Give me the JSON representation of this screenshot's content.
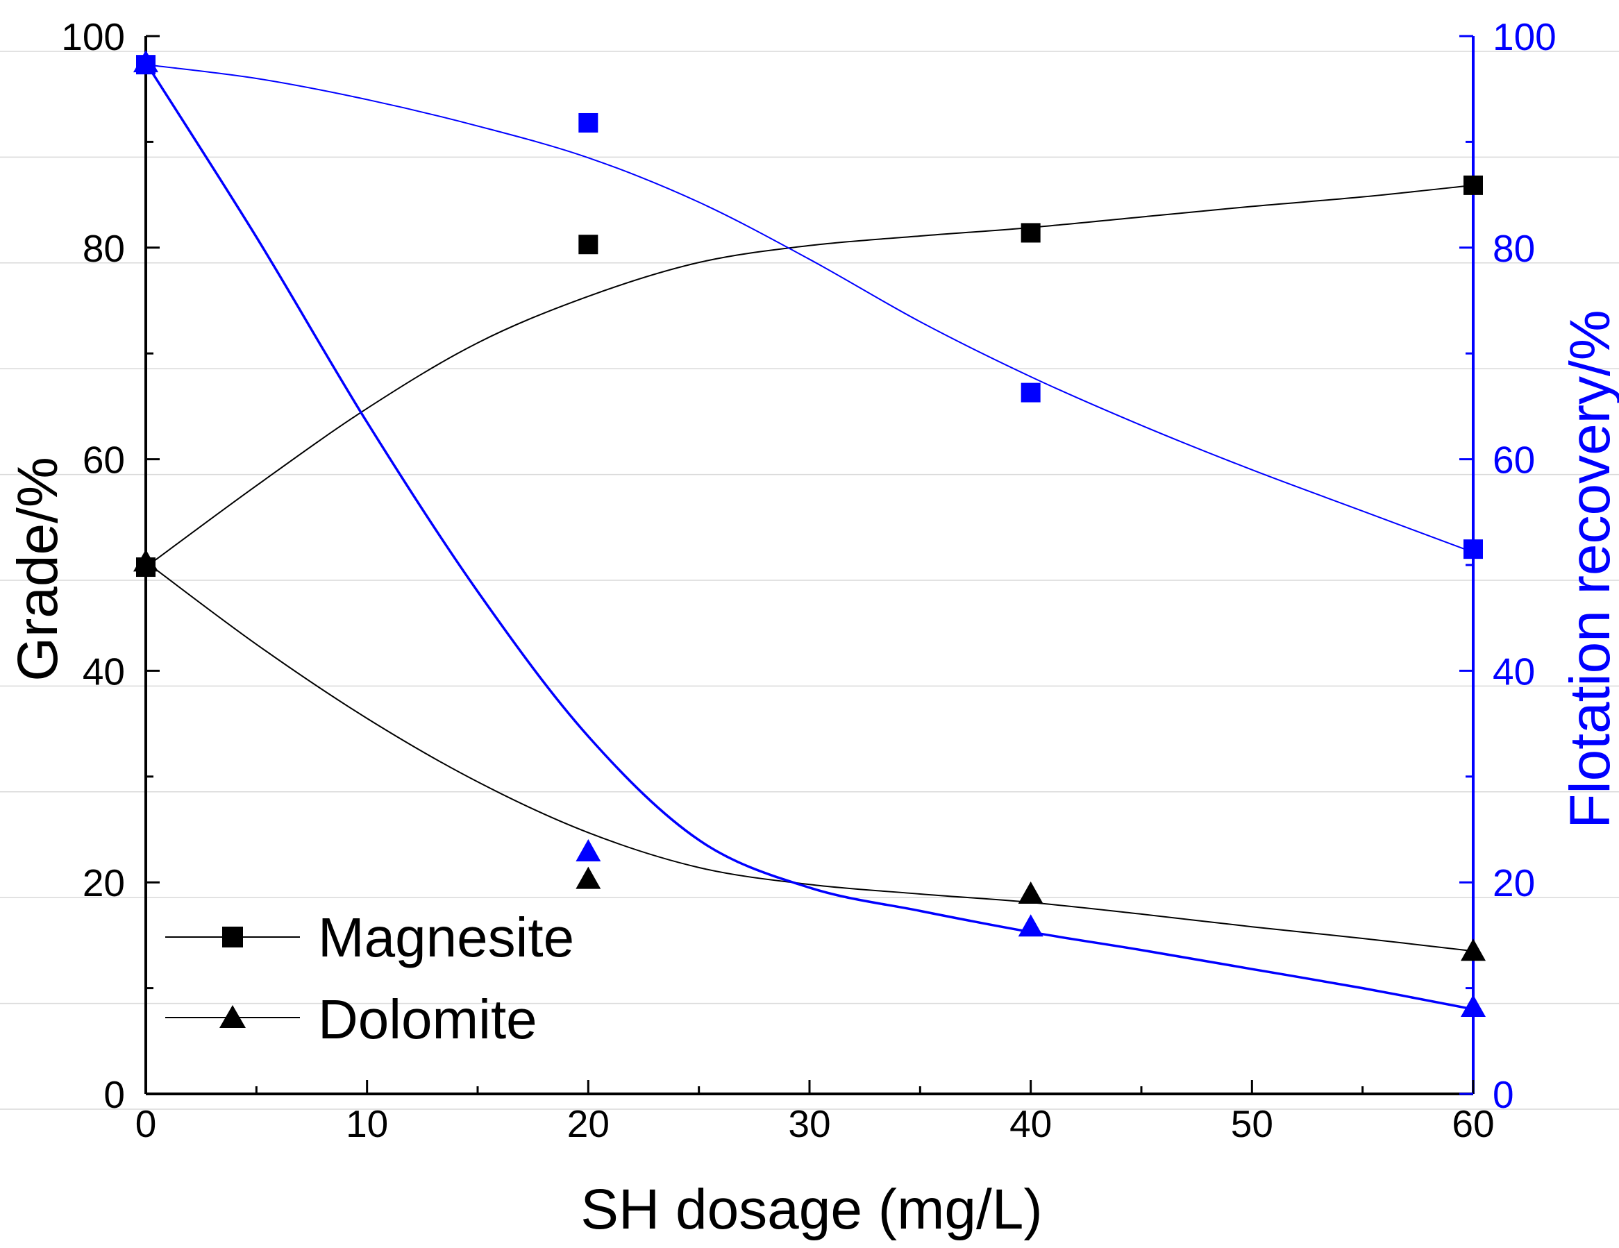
{
  "chart_data": {
    "type": "scatter",
    "x_axis": {
      "label": "SH dosage (mg/L)",
      "range": [
        0,
        60
      ],
      "major_ticks": [
        0,
        10,
        20,
        30,
        40,
        50,
        60
      ],
      "minor_ticks": [
        5,
        15,
        25,
        35,
        45,
        55
      ],
      "tick_labels": [
        "0",
        "10",
        "20",
        "30",
        "40",
        "50",
        "60"
      ]
    },
    "y_left_axis": {
      "label": "Grade/%",
      "range": [
        0,
        100
      ],
      "major_ticks": [
        0,
        20,
        40,
        60,
        80,
        100
      ],
      "minor_ticks": [
        10,
        30,
        50,
        70,
        90
      ],
      "tick_labels": [
        "0",
        "20",
        "40",
        "60",
        "80",
        "100"
      ],
      "color": "#000000"
    },
    "y_right_axis": {
      "label": "Flotation recovery/%",
      "range": [
        0,
        100
      ],
      "major_ticks": [
        0,
        20,
        40,
        60,
        80,
        100
      ],
      "minor_ticks": [
        10,
        30,
        50,
        70,
        90
      ],
      "tick_labels": [
        "0",
        "20",
        "40",
        "60",
        "80",
        "100"
      ],
      "color": "#0000ff"
    },
    "grid": "horizontal",
    "series": [
      {
        "name": "Magnesite",
        "metric": "grade",
        "axis": "left",
        "marker": "square",
        "color": "#000000",
        "x": [
          0,
          20,
          40,
          60
        ],
        "y": [
          49.8,
          80.3,
          81.4,
          85.9
        ],
        "fit_curve": [
          [
            0,
            49.8
          ],
          [
            5,
            57.5
          ],
          [
            10,
            64.8
          ],
          [
            15,
            71.0
          ],
          [
            20,
            75.4
          ],
          [
            25,
            78.6
          ],
          [
            30,
            80.2
          ],
          [
            35,
            81.1
          ],
          [
            40,
            81.9
          ],
          [
            45,
            82.9
          ],
          [
            50,
            83.9
          ],
          [
            55,
            84.8
          ],
          [
            60,
            85.9
          ]
        ]
      },
      {
        "name": "Dolomite",
        "metric": "grade",
        "axis": "left",
        "marker": "triangle",
        "color": "#000000",
        "x": [
          0,
          20,
          40,
          60
        ],
        "y": [
          50.3,
          20.3,
          18.9,
          13.5
        ],
        "fit_curve": [
          [
            0,
            50.3
          ],
          [
            5,
            42.5
          ],
          [
            10,
            35.5
          ],
          [
            15,
            29.5
          ],
          [
            20,
            24.7
          ],
          [
            25,
            21.4
          ],
          [
            30,
            19.8
          ],
          [
            35,
            18.9
          ],
          [
            40,
            18.1
          ],
          [
            45,
            17.0
          ],
          [
            50,
            15.8
          ],
          [
            55,
            14.7
          ],
          [
            60,
            13.5
          ]
        ]
      },
      {
        "name": "Magnesite",
        "metric": "recovery",
        "axis": "right",
        "marker": "square",
        "color": "#0000ff",
        "x": [
          0,
          20,
          40,
          60
        ],
        "y": [
          97.3,
          91.8,
          66.3,
          51.5
        ],
        "fit_curve": [
          [
            0,
            97.3
          ],
          [
            5,
            96.0
          ],
          [
            10,
            94.0
          ],
          [
            15,
            91.5
          ],
          [
            20,
            88.5
          ],
          [
            25,
            84.3
          ],
          [
            30,
            78.9
          ],
          [
            35,
            73.0
          ],
          [
            40,
            67.8
          ],
          [
            45,
            63.2
          ],
          [
            50,
            59.0
          ],
          [
            55,
            55.1
          ],
          [
            60,
            51.2
          ]
        ]
      },
      {
        "name": "Dolomite",
        "metric": "recovery",
        "axis": "right",
        "marker": "triangle",
        "color": "#0000ff",
        "x": [
          0,
          20,
          40,
          60
        ],
        "y": [
          97.5,
          22.9,
          15.8,
          8.2
        ],
        "fit_curve": [
          [
            0,
            97.5
          ],
          [
            5,
            81.0
          ],
          [
            10,
            63.5
          ],
          [
            15,
            47.5
          ],
          [
            20,
            33.8
          ],
          [
            25,
            24.0
          ],
          [
            30,
            19.5
          ],
          [
            35,
            17.3
          ],
          [
            40,
            15.3
          ],
          [
            45,
            13.6
          ],
          [
            50,
            11.8
          ],
          [
            55,
            10.0
          ],
          [
            60,
            8.0
          ]
        ]
      }
    ],
    "legend": {
      "placement": "bottom-left",
      "entries": [
        {
          "label": "Magnesite",
          "marker": "square"
        },
        {
          "label": "Dolomite",
          "marker": "triangle"
        }
      ]
    }
  }
}
